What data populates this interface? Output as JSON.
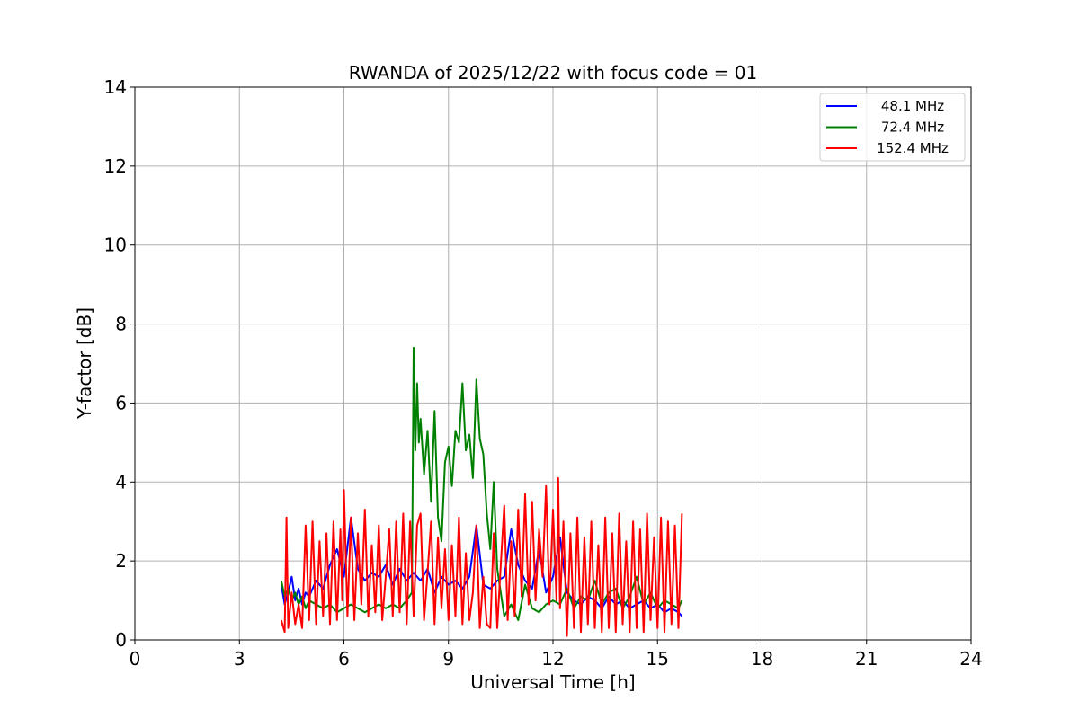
{
  "chart_data": {
    "type": "line",
    "title": "RWANDA of 2025/12/22 with focus code = 01",
    "xlabel": "Universal Time [h]",
    "ylabel": "Y-factor [dB]",
    "xlim": [
      0,
      24
    ],
    "ylim": [
      0,
      14
    ],
    "xticks": [
      0,
      3,
      6,
      9,
      12,
      15,
      18,
      21,
      24
    ],
    "yticks": [
      0,
      2,
      4,
      6,
      8,
      10,
      12,
      14
    ],
    "grid": true,
    "legend_position": "top-right",
    "series": [
      {
        "name": "48.1 MHz",
        "color": "#0000ff",
        "x": [
          4.2,
          4.3,
          4.4,
          4.5,
          4.6,
          4.7,
          4.8,
          4.9,
          5.0,
          5.2,
          5.4,
          5.6,
          5.8,
          6.0,
          6.2,
          6.4,
          6.6,
          6.8,
          7.0,
          7.2,
          7.4,
          7.6,
          7.8,
          8.0,
          8.2,
          8.4,
          8.6,
          8.8,
          9.0,
          9.2,
          9.4,
          9.6,
          9.8,
          10.0,
          10.2,
          10.4,
          10.6,
          10.8,
          11.0,
          11.2,
          11.4,
          11.6,
          11.8,
          12.0,
          12.2,
          12.4,
          12.6,
          12.8,
          13.0,
          13.2,
          13.4,
          13.6,
          13.8,
          14.0,
          14.2,
          14.4,
          14.6,
          14.8,
          15.0,
          15.2,
          15.4,
          15.6,
          15.7
        ],
        "y": [
          1.4,
          0.9,
          1.2,
          1.6,
          1.0,
          1.3,
          0.9,
          1.2,
          1.1,
          1.5,
          1.3,
          1.9,
          2.3,
          1.6,
          3.1,
          1.8,
          1.5,
          1.7,
          1.6,
          1.9,
          1.4,
          1.8,
          1.5,
          1.7,
          1.5,
          1.8,
          1.2,
          1.6,
          1.4,
          1.5,
          1.3,
          1.6,
          2.9,
          1.4,
          1.3,
          1.5,
          1.6,
          2.8,
          1.9,
          1.5,
          1.3,
          2.3,
          1.2,
          1.6,
          2.6,
          1.2,
          1.0,
          0.9,
          1.1,
          1.0,
          0.8,
          1.1,
          0.9,
          1.0,
          0.8,
          0.9,
          1.0,
          0.8,
          0.9,
          0.7,
          0.8,
          0.7,
          0.6
        ]
      },
      {
        "name": "72.4 MHz",
        "color": "#008000",
        "x": [
          4.2,
          4.3,
          4.4,
          4.5,
          4.6,
          4.7,
          4.8,
          4.9,
          5.0,
          5.2,
          5.4,
          5.6,
          5.8,
          6.0,
          6.2,
          6.4,
          6.6,
          6.8,
          7.0,
          7.2,
          7.4,
          7.6,
          7.8,
          7.95,
          8.0,
          8.05,
          8.1,
          8.15,
          8.2,
          8.3,
          8.4,
          8.5,
          8.6,
          8.7,
          8.8,
          8.9,
          9.0,
          9.1,
          9.2,
          9.3,
          9.4,
          9.5,
          9.6,
          9.7,
          9.8,
          9.9,
          10.0,
          10.1,
          10.2,
          10.3,
          10.4,
          10.5,
          10.6,
          10.8,
          11.0,
          11.2,
          11.4,
          11.6,
          11.8,
          12.0,
          12.2,
          12.4,
          12.6,
          12.8,
          13.0,
          13.2,
          13.4,
          13.6,
          13.8,
          14.0,
          14.2,
          14.4,
          14.6,
          14.8,
          15.0,
          15.2,
          15.4,
          15.6,
          15.7
        ],
        "y": [
          1.5,
          1.1,
          1.3,
          1.0,
          1.2,
          0.9,
          1.1,
          0.8,
          1.0,
          0.9,
          0.8,
          0.9,
          0.7,
          0.8,
          0.9,
          0.8,
          0.7,
          0.8,
          0.9,
          0.8,
          0.9,
          0.8,
          1.0,
          1.2,
          7.4,
          4.8,
          6.5,
          5.0,
          5.6,
          4.2,
          5.3,
          3.5,
          5.8,
          3.1,
          2.5,
          4.5,
          4.9,
          3.9,
          5.3,
          5.0,
          6.5,
          4.8,
          5.2,
          4.1,
          6.6,
          5.1,
          4.7,
          3.2,
          2.3,
          4.0,
          1.8,
          1.2,
          0.6,
          0.9,
          0.5,
          1.4,
          0.8,
          0.7,
          0.9,
          1.0,
          0.9,
          1.3,
          0.8,
          1.1,
          1.0,
          1.5,
          0.9,
          1.2,
          1.3,
          0.8,
          1.1,
          1.6,
          0.9,
          1.2,
          0.8,
          1.0,
          0.9,
          0.8,
          1.0
        ]
      },
      {
        "name": "152.4 MHz",
        "color": "#ff0000",
        "x": [
          4.2,
          4.3,
          4.35,
          4.4,
          4.5,
          4.6,
          4.7,
          4.8,
          4.9,
          5.0,
          5.1,
          5.2,
          5.3,
          5.4,
          5.5,
          5.6,
          5.7,
          5.8,
          5.9,
          5.95,
          6.0,
          6.1,
          6.2,
          6.3,
          6.4,
          6.5,
          6.6,
          6.7,
          6.8,
          6.9,
          7.0,
          7.1,
          7.2,
          7.3,
          7.4,
          7.5,
          7.6,
          7.7,
          7.8,
          7.9,
          8.0,
          8.1,
          8.2,
          8.3,
          8.4,
          8.5,
          8.6,
          8.7,
          8.8,
          8.9,
          9.0,
          9.1,
          9.2,
          9.3,
          9.4,
          9.5,
          9.6,
          9.7,
          9.8,
          9.9,
          10.0,
          10.1,
          10.2,
          10.3,
          10.4,
          10.5,
          10.6,
          10.7,
          10.8,
          10.9,
          11.0,
          11.1,
          11.2,
          11.3,
          11.4,
          11.5,
          11.6,
          11.7,
          11.8,
          11.9,
          12.0,
          12.1,
          12.15,
          12.2,
          12.3,
          12.4,
          12.5,
          12.6,
          12.7,
          12.8,
          12.9,
          13.0,
          13.1,
          13.2,
          13.3,
          13.4,
          13.5,
          13.6,
          13.7,
          13.8,
          13.9,
          14.0,
          14.1,
          14.2,
          14.3,
          14.4,
          14.5,
          14.6,
          14.7,
          14.8,
          14.9,
          15.0,
          15.1,
          15.2,
          15.3,
          15.4,
          15.5,
          15.6,
          15.7
        ],
        "y": [
          0.5,
          0.2,
          3.1,
          0.3,
          1.2,
          0.4,
          0.9,
          0.3,
          2.9,
          0.5,
          3.0,
          0.4,
          2.5,
          0.6,
          2.7,
          0.4,
          3.0,
          0.5,
          2.8,
          1.0,
          3.8,
          0.6,
          3.1,
          0.5,
          2.7,
          0.9,
          3.3,
          0.6,
          2.4,
          0.7,
          2.9,
          0.5,
          1.6,
          2.8,
          0.6,
          3.0,
          0.7,
          3.2,
          0.4,
          3.0,
          0.6,
          2.9,
          3.2,
          0.5,
          1.7,
          3.0,
          0.4,
          2.6,
          0.8,
          2.3,
          0.5,
          2.4,
          0.6,
          3.1,
          0.4,
          2.2,
          0.5,
          1.2,
          2.9,
          0.3,
          1.6,
          0.4,
          0.3,
          2.7,
          0.3,
          1.9,
          3.4,
          0.5,
          2.5,
          0.6,
          3.3,
          1.1,
          3.7,
          0.9,
          3.5,
          1.0,
          2.8,
          1.6,
          3.9,
          0.9,
          3.3,
          1.0,
          4.1,
          0.8,
          3.0,
          0.1,
          2.7,
          0.3,
          3.1,
          0.2,
          2.6,
          0.4,
          3.0,
          0.3,
          2.4,
          0.2,
          3.1,
          0.3,
          2.7,
          0.2,
          3.2,
          0.4,
          2.5,
          0.2,
          3.0,
          0.3,
          2.8,
          0.2,
          3.2,
          0.5,
          2.6,
          0.3,
          3.1,
          0.2,
          3.0,
          0.4,
          2.9,
          0.3,
          3.2
        ]
      }
    ]
  }
}
